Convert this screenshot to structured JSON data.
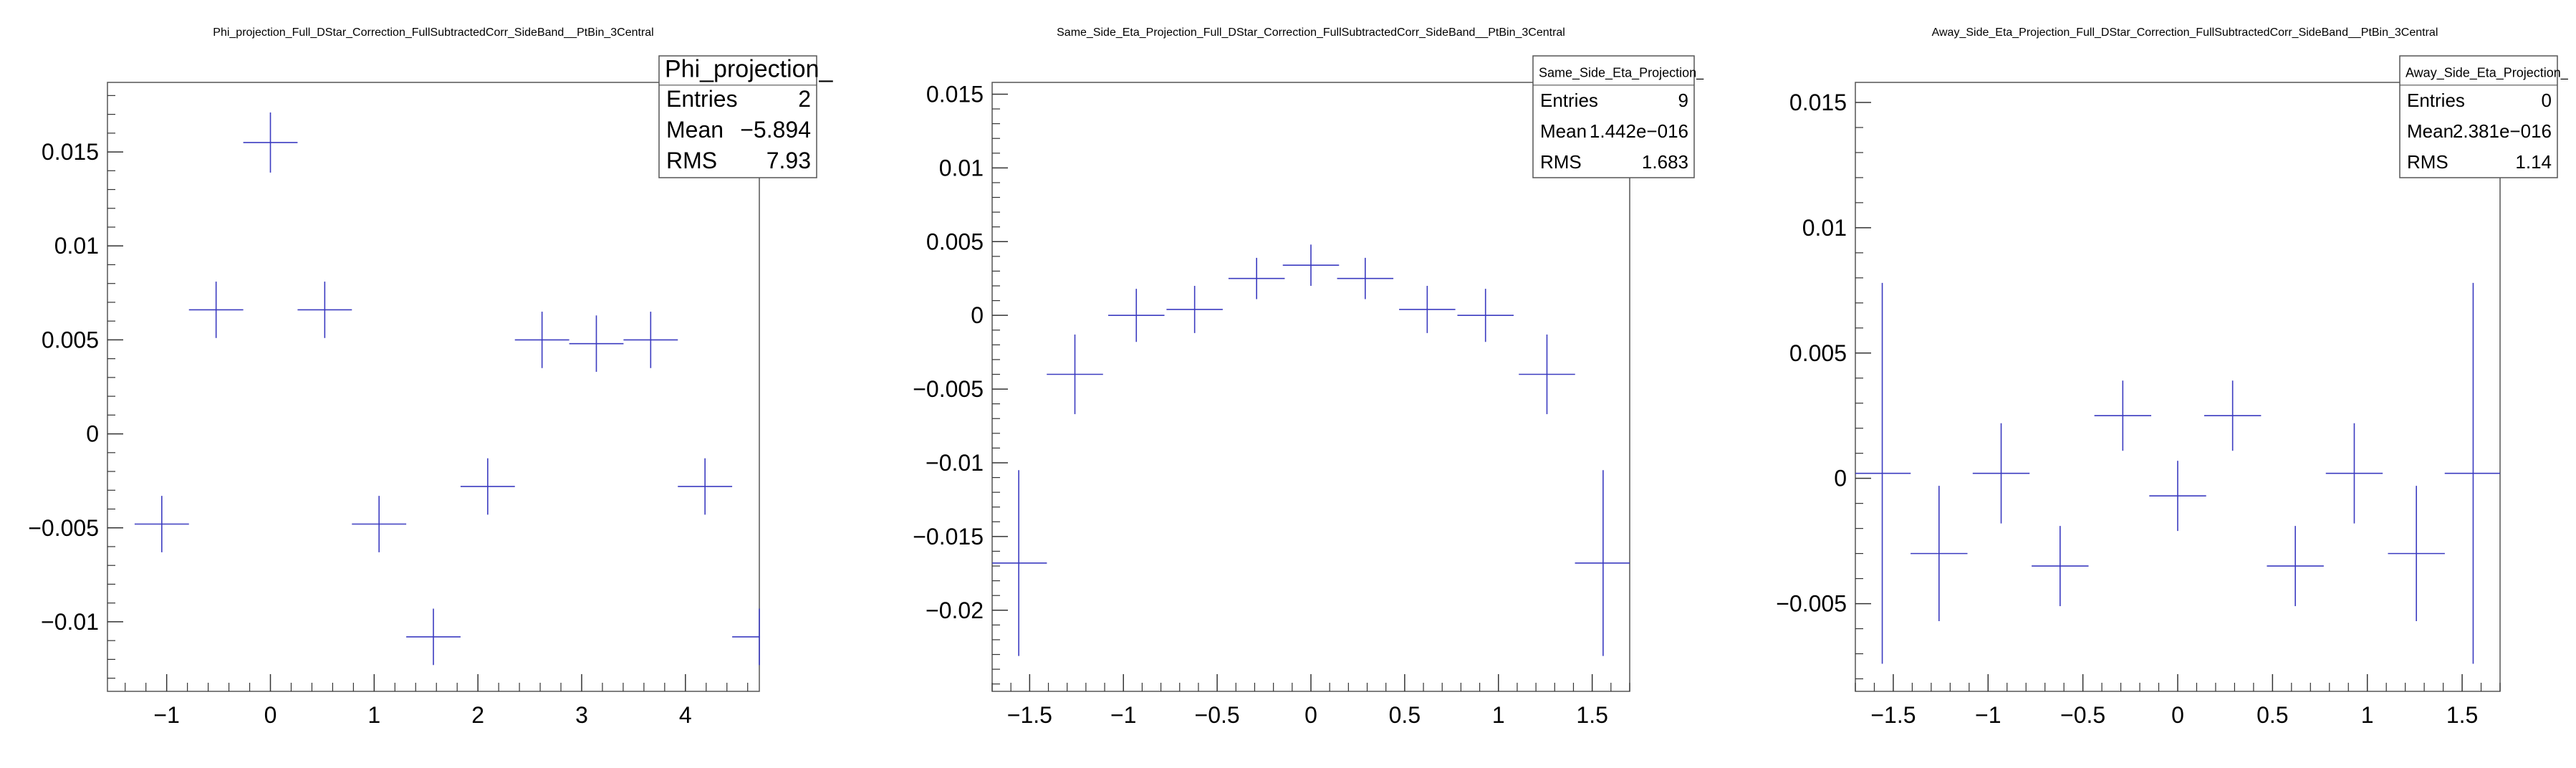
{
  "chart_data": [
    {
      "type": "scatter",
      "title": "Phi_projection_Full_DStar_Correction_FullSubtractedCorr_SideBand__PtBin_3Central",
      "xlabel": "",
      "ylabel": "",
      "xlim": [
        -1.5708,
        4.7124
      ],
      "ylim": [
        -0.0137,
        0.0187
      ],
      "xticks": [
        -1,
        0,
        1,
        2,
        3,
        4
      ],
      "yticks": [
        -0.01,
        -0.005,
        0,
        0.005,
        0.01,
        0.015
      ],
      "xtick_labels": [
        "−1",
        "0",
        "1",
        "2",
        "3",
        "4"
      ],
      "ytick_labels": [
        "−0.01",
        "−0.005",
        "0",
        "0.005",
        "0.01",
        "0.015"
      ],
      "grid": false,
      "legend": "top-right",
      "series": [
        {
          "x": [
            -1.0472,
            -0.5236,
            0.0,
            0.5236,
            1.0472,
            1.5708,
            2.0944,
            2.618,
            3.1416,
            3.6652,
            4.1888,
            4.7124
          ],
          "x_err": 0.2618,
          "y": [
            -0.0048,
            0.0066,
            0.0155,
            0.0066,
            -0.0048,
            -0.0108,
            -0.0028,
            0.005,
            0.0048,
            0.005,
            -0.0028,
            -0.0108
          ],
          "y_err": [
            0.0015,
            0.0015,
            0.0016,
            0.0015,
            0.0015,
            0.0015,
            0.0015,
            0.0015,
            0.0015,
            0.0015,
            0.0015,
            0.0015
          ]
        }
      ],
      "stats": {
        "title": "Phi_projection_",
        "rows": [
          {
            "label": "Entries",
            "value": "2"
          },
          {
            "label": "Mean",
            "value": "−5.894"
          },
          {
            "label": "RMS",
            "value": "7.93"
          }
        ]
      }
    },
    {
      "type": "scatter",
      "title": "Same_Side_Eta_Projection_Full_DStar_Correction_FullSubtractedCorr_SideBand__PtBin_3Central",
      "xlabel": "",
      "ylabel": "",
      "xlim": [
        -1.7,
        1.7
      ],
      "ylim": [
        -0.0255,
        0.0158
      ],
      "xticks": [
        -1.5,
        -1,
        -0.5,
        0,
        0.5,
        1,
        1.5
      ],
      "yticks": [
        -0.02,
        -0.015,
        -0.01,
        -0.005,
        0,
        0.005,
        0.01,
        0.015
      ],
      "xtick_labels": [
        "−1.5",
        "−1",
        "−0.5",
        "0",
        "0.5",
        "1",
        "1.5"
      ],
      "ytick_labels": [
        "−0.02",
        "−0.015",
        "−0.01",
        "−0.005",
        "0",
        "0.005",
        "0.01",
        "0.015"
      ],
      "grid": false,
      "legend": "top-right",
      "series": [
        {
          "x": [
            -1.5581,
            -1.2587,
            -0.9311,
            -0.6202,
            -0.2896,
            0.0,
            0.2896,
            0.6202,
            0.9311,
            1.2587,
            1.5581
          ],
          "x_err": 0.15,
          "y": [
            -0.0168,
            -0.004,
            0.0,
            0.0004,
            0.0025,
            0.0034,
            0.0025,
            0.0004,
            0.0,
            -0.004,
            -0.0168
          ],
          "y_err": [
            0.0063,
            0.0027,
            0.0018,
            0.0016,
            0.0014,
            0.0014,
            0.0014,
            0.0016,
            0.0018,
            0.0027,
            0.0063
          ]
        }
      ],
      "stats": {
        "title": "Same_Side_Eta_Projection_",
        "rows": [
          {
            "label": "Entries",
            "value": "9"
          },
          {
            "label": "Mean",
            "value": "1.442e−016"
          },
          {
            "label": "RMS",
            "value": "1.683"
          }
        ]
      }
    },
    {
      "type": "scatter",
      "title": "Away_Side_Eta_Projection_Full_DStar_Correction_FullSubtractedCorr_SideBand__PtBin_3Central",
      "xlabel": "",
      "ylabel": "",
      "xlim": [
        -1.7,
        1.7
      ],
      "ylim": [
        -0.0085,
        0.0158
      ],
      "xticks": [
        -1.5,
        -1,
        -0.5,
        0,
        0.5,
        1,
        1.5
      ],
      "yticks": [
        -0.005,
        0,
        0.005,
        0.01,
        0.015
      ],
      "xtick_labels": [
        "−1.5",
        "−1",
        "−0.5",
        "0",
        "0.5",
        "1",
        "1.5"
      ],
      "ytick_labels": [
        "−0.005",
        "0",
        "0.005",
        "0.01",
        "0.015"
      ],
      "grid": false,
      "legend": "top-right",
      "series": [
        {
          "x": [
            -1.5581,
            -1.2587,
            -0.9311,
            -0.6202,
            -0.2896,
            0.0,
            0.2896,
            0.6202,
            0.9311,
            1.2587,
            1.5581
          ],
          "x_err": 0.15,
          "y": [
            0.0002,
            -0.003,
            0.0002,
            -0.0035,
            0.0025,
            -0.0007,
            0.0025,
            -0.0035,
            0.0002,
            -0.003,
            0.0002
          ],
          "y_err": [
            0.0076,
            0.0027,
            0.002,
            0.0016,
            0.0014,
            0.0014,
            0.0014,
            0.0016,
            0.002,
            0.0027,
            0.0076
          ]
        }
      ],
      "stats": {
        "title": "Away_Side_Eta_Projection_",
        "rows": [
          {
            "label": "Entries",
            "value": "0"
          },
          {
            "label": "Mean",
            "value": "2.381e−016"
          },
          {
            "label": "RMS",
            "value": "1.14"
          }
        ]
      }
    }
  ],
  "colors": {
    "marker": "#3b3bc0",
    "axis": "#333333",
    "frame": "#555555",
    "text": "#000000"
  }
}
